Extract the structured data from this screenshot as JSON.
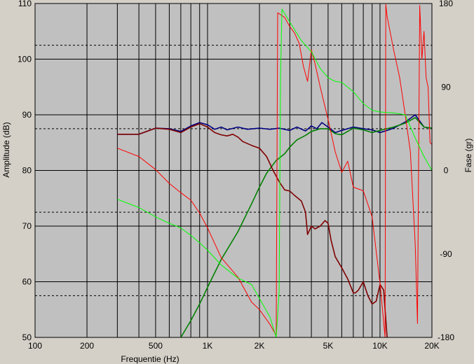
{
  "chart_data": {
    "type": "line",
    "title": "",
    "xlabel": "Frequentie (Hz)",
    "ylabel": "Amplitude (dB)",
    "y2label": "Fase (gr)",
    "xscale": "log",
    "xlim": [
      100,
      20000
    ],
    "ylim": [
      50,
      110
    ],
    "y2lim": [
      -180,
      180
    ],
    "grid": true,
    "legend": "none",
    "x_tick_labels": [
      "100",
      "200",
      "500",
      "1K",
      "2K",
      "5K",
      "10K",
      "20K"
    ],
    "x_tick_values": [
      100,
      200,
      500,
      1000,
      2000,
      5000,
      10000,
      20000
    ],
    "y_tick_labels": [
      "110",
      "100",
      "90",
      "80",
      "70",
      "60",
      "50"
    ],
    "y_tick_values": [
      110,
      100,
      90,
      80,
      70,
      60,
      50
    ],
    "y2_tick_labels": [
      "180",
      "90",
      "0",
      "-90",
      "-180"
    ],
    "y2_tick_values": [
      180,
      90,
      0,
      -90,
      -180
    ],
    "colors": {
      "plot_bg": "#c0c0c0",
      "frame_bg": "#d4d0c8",
      "grid": "#000000",
      "sum_amplitude": "#000080",
      "sum_phase": "#008000",
      "woofer_amplitude": "#800000",
      "woofer_phase": "#ff0000",
      "tweeter_phase": "#00ff00"
    },
    "series": [
      {
        "axis": "left",
        "color": "#000080",
        "width": 1.6,
        "x": [
          300,
          400,
          500,
          600,
          700,
          800,
          900,
          1000,
          1100,
          1200,
          1300,
          1500,
          1700,
          2000,
          2300,
          2600,
          3000,
          3300,
          3700,
          4000,
          4300,
          4600,
          5000,
          5500,
          6000,
          7000,
          8000,
          9000,
          10000,
          11000,
          12000,
          14000,
          16000,
          18000,
          20000
        ],
        "y": [
          86.5,
          86.5,
          87.6,
          87.5,
          87.0,
          88.0,
          88.6,
          88.2,
          87.4,
          87.8,
          87.3,
          87.8,
          87.4,
          87.6,
          87.4,
          87.6,
          87.2,
          87.8,
          87.1,
          88.0,
          87.5,
          88.6,
          87.8,
          86.8,
          87.2,
          87.8,
          87.5,
          87.3,
          86.8,
          87.2,
          87.6,
          88.7,
          90.0,
          87.8,
          87.6
        ]
      },
      {
        "axis": "left",
        "color": "#008000",
        "width": 1.6,
        "x": [
          700,
          800,
          900,
          1000,
          1200,
          1500,
          1800,
          2000,
          2200,
          2500,
          2800,
          3000,
          3300,
          3700,
          4000,
          4500,
          5000,
          5500,
          6000,
          7000,
          8000,
          9000,
          10000,
          12000,
          14000,
          16000,
          18000,
          20000
        ],
        "y": [
          50,
          53,
          56,
          59,
          64,
          69,
          74,
          77,
          79.5,
          81.8,
          83,
          84.2,
          85.5,
          86.3,
          87.0,
          87.5,
          87.5,
          86.6,
          86.4,
          87.6,
          87.3,
          86.8,
          87.2,
          87.8,
          88.5,
          89.5,
          87.8,
          87.6
        ]
      },
      {
        "axis": "left",
        "color": "#800000",
        "width": 1.6,
        "x": [
          300,
          400,
          500,
          600,
          700,
          800,
          900,
          1000,
          1100,
          1200,
          1300,
          1400,
          1500,
          1600,
          1800,
          2000,
          2200,
          2400,
          2600,
          2800,
          3000,
          3200,
          3500,
          3700,
          3800,
          4000,
          4200,
          4500,
          4800,
          5000,
          5200,
          5500,
          6000,
          6500,
          7000,
          7200,
          7500,
          8000,
          8500,
          9000,
          9500,
          10000,
          10500,
          11000
        ],
        "y": [
          86.5,
          86.5,
          87.6,
          87.4,
          86.8,
          87.8,
          88.4,
          87.8,
          86.8,
          86.4,
          86.2,
          86.5,
          86.0,
          85.2,
          84.5,
          84.0,
          82.5,
          80.0,
          78.0,
          76.5,
          76.3,
          75.5,
          74.5,
          72.5,
          68.5,
          70.0,
          69.5,
          70.0,
          71.0,
          70.5,
          67.5,
          64.5,
          62.5,
          60.5,
          58.0,
          58.0,
          58.5,
          60.0,
          57.5,
          56.0,
          56.5,
          59.5,
          58.5,
          50.0
        ]
      },
      {
        "axis": "right",
        "color": "#ff0000",
        "width": 1,
        "x": [
          300,
          400,
          500,
          600,
          700,
          800,
          900,
          1000,
          1200,
          1500,
          1800,
          2000,
          2300,
          2500,
          2550,
          2600,
          2800,
          3000,
          3200,
          3400,
          3600,
          3800,
          4000,
          4200,
          4500,
          5000,
          5500,
          6000,
          6500,
          7000,
          7500,
          8000,
          9000,
          10000,
          10700,
          10800,
          11000,
          12000,
          13000,
          14000,
          15000,
          16000,
          16500,
          17000,
          17500,
          18000,
          18500,
          19000,
          19500,
          20000
        ],
        "y": [
          24,
          15,
          1,
          -14,
          -24,
          -32,
          -46,
          -62,
          -94,
          -115,
          -142,
          -150,
          -166,
          -178,
          170,
          169,
          165,
          155,
          148,
          137,
          112,
          96,
          130,
          115,
          90,
          55,
          20,
          -2,
          10,
          -18,
          -20,
          -22,
          -50,
          -122,
          -180,
          179,
          166,
          130,
          100,
          60,
          20,
          -80,
          -165,
          178,
          120,
          150,
          100,
          90,
          30,
          28
        ]
      },
      {
        "axis": "right",
        "color": "#00ff00",
        "width": 1,
        "x": [
          300,
          400,
          500,
          600,
          700,
          800,
          900,
          1000,
          1200,
          1500,
          1800,
          2000,
          2300,
          2500,
          2600,
          2650,
          2700,
          3000,
          3500,
          4000,
          4500,
          5000,
          5500,
          6000,
          7000,
          8000,
          9000,
          10000,
          12000,
          14000,
          16000,
          18000,
          20000
        ],
        "y": [
          -31,
          -40,
          -50,
          -57,
          -62,
          -70,
          -78,
          -86,
          -102,
          -116,
          -123,
          -138,
          -158,
          -180,
          -130,
          100,
          174,
          160,
          140,
          128,
          110,
          100,
          96,
          95,
          85,
          72,
          65,
          63,
          62,
          60,
          35,
          15,
          0
        ]
      }
    ]
  }
}
